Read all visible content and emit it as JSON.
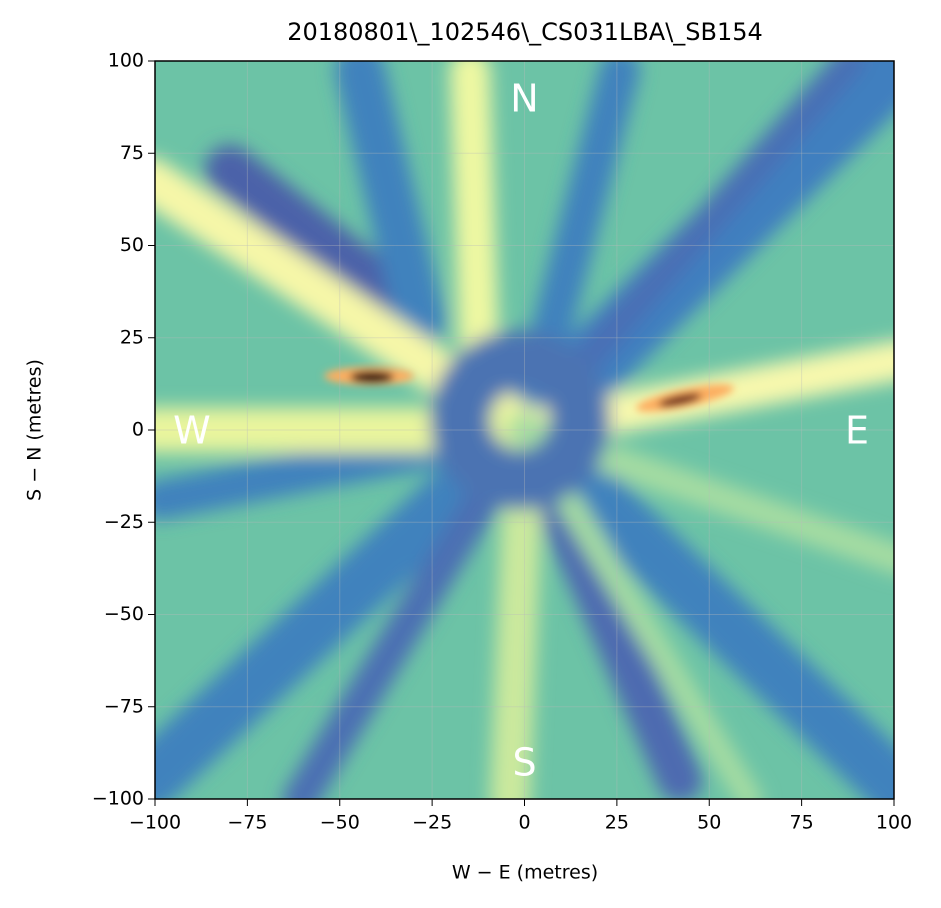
{
  "chart_data": {
    "type": "heatmap",
    "title": "20180801\\_102546\\_CS031LBA\\_SB154",
    "x_label": "W − E (metres)",
    "y_label": "S − N (metres)",
    "xlim": [
      -100,
      100
    ],
    "ylim": [
      -100,
      100
    ],
    "xticks": [
      {
        "value": -100,
        "label": "−100"
      },
      {
        "value": -75,
        "label": "−75"
      },
      {
        "value": -50,
        "label": "−50"
      },
      {
        "value": -25,
        "label": "−25"
      },
      0,
      25,
      50,
      75,
      100
    ],
    "yticks": [
      {
        "value": -100,
        "label": "−100"
      },
      {
        "value": -75,
        "label": "−75"
      },
      {
        "value": -50,
        "label": "−50"
      },
      {
        "value": -25,
        "label": "−25"
      },
      0,
      25,
      50,
      75,
      100
    ],
    "annotations": [
      {
        "text": "N",
        "x": 0,
        "y": 90
      },
      {
        "text": "S",
        "x": 0,
        "y": -90
      },
      {
        "text": "E",
        "x": 90,
        "y": 0
      },
      {
        "text": "W",
        "x": -90,
        "y": 0
      }
    ],
    "colormap": "Spectral_r"
  }
}
